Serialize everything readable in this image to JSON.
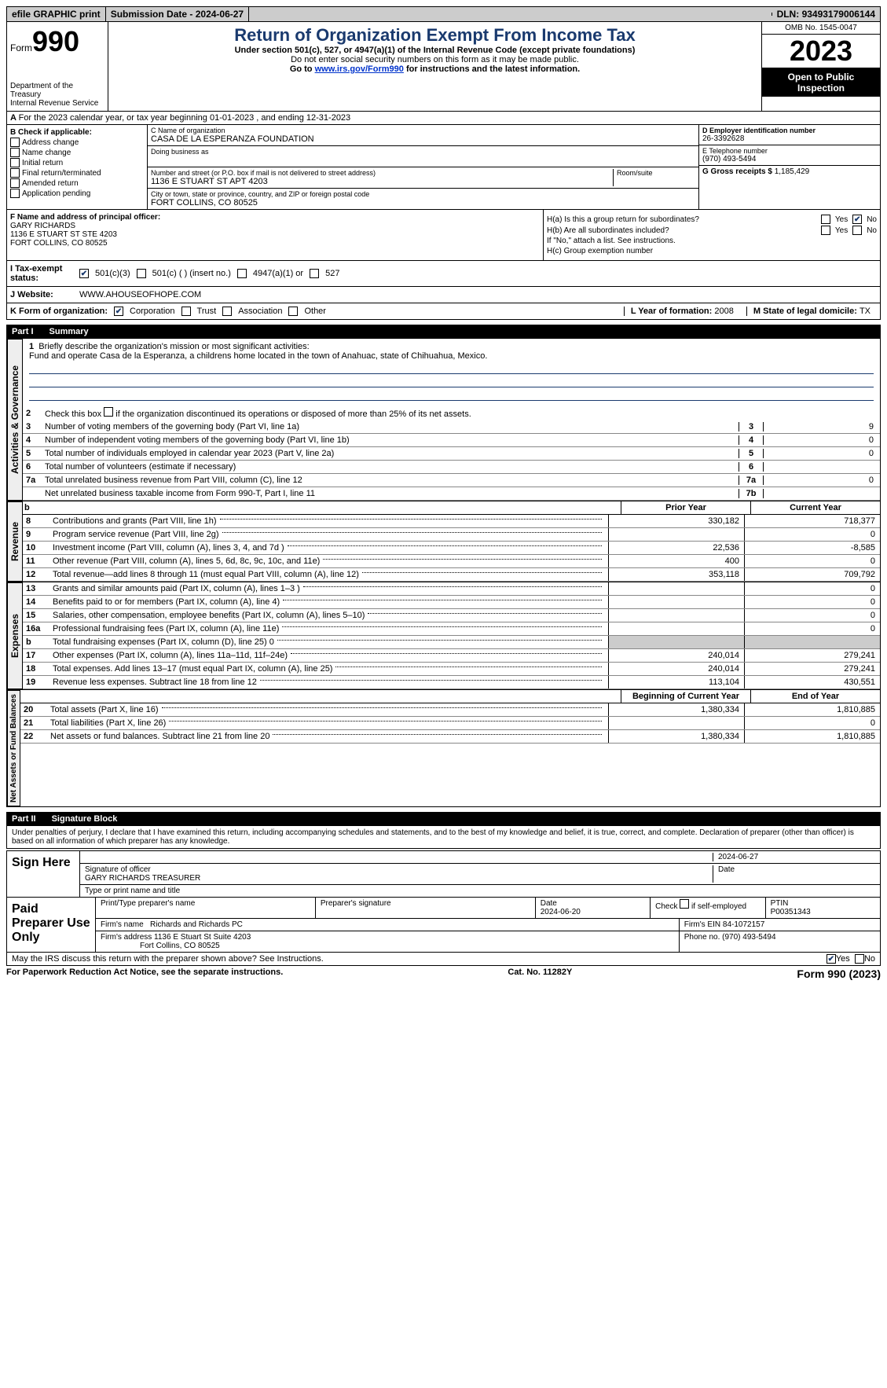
{
  "topbar": {
    "efile": "efile GRAPHIC print",
    "subdate_lbl": "Submission Date - ",
    "subdate": "2024-06-27",
    "dln_lbl": "DLN: ",
    "dln": "93493179006144"
  },
  "header": {
    "form_lbl": "Form",
    "form_no": "990",
    "dept": "Department of the Treasury\nInternal Revenue Service",
    "title": "Return of Organization Exempt From Income Tax",
    "sub1": "Under section 501(c), 527, or 4947(a)(1) of the Internal Revenue Code (except private foundations)",
    "sub2": "Do not enter social security numbers on this form as it may be made public.",
    "sub3_pre": "Go to ",
    "sub3_link": "www.irs.gov/Form990",
    "sub3_post": " for instructions and the latest information.",
    "omb": "OMB No. 1545-0047",
    "year": "2023",
    "open": "Open to Public Inspection"
  },
  "secA": "For the 2023 calendar year, or tax year beginning 01-01-2023   , and ending 12-31-2023",
  "boxB": {
    "hdr": "B Check if applicable:",
    "items": [
      "Address change",
      "Name change",
      "Initial return",
      "Final return/terminated",
      "Amended return",
      "Application pending"
    ]
  },
  "boxC": {
    "name_lbl": "C Name of organization",
    "name": "CASA DE LA ESPERANZA FOUNDATION",
    "dba_lbl": "Doing business as",
    "street_lbl": "Number and street (or P.O. box if mail is not delivered to street address)",
    "street": "1136 E STUART ST APT 4203",
    "room_lbl": "Room/suite",
    "city_lbl": "City or town, state or province, country, and ZIP or foreign postal code",
    "city": "FORT COLLINS, CO  80525"
  },
  "boxD": {
    "lbl": "D Employer identification number",
    "val": "26-3392628"
  },
  "boxE": {
    "lbl": "E Telephone number",
    "val": "(970) 493-5494"
  },
  "boxG": {
    "lbl": "G Gross receipts $ ",
    "val": "1,185,429"
  },
  "boxF": {
    "lbl": "F  Name and address of principal officer:",
    "name": "GARY RICHARDS",
    "addr1": "1136 E STUART ST STE 4203",
    "addr2": "FORT COLLINS, CO  80525"
  },
  "boxH": {
    "a_lbl": "H(a)  Is this a group return for subordinates?",
    "b_lbl": "H(b)  Are all subordinates included?",
    "b_note": "If \"No,\" attach a list. See instructions.",
    "c_lbl": "H(c)  Group exemption number",
    "yes": "Yes",
    "no": "No"
  },
  "status": {
    "lbl": "I   Tax-exempt status:",
    "opt1": "501(c)(3)",
    "opt2": "501(c) (  ) (insert no.)",
    "opt3": "4947(a)(1) or",
    "opt4": "527"
  },
  "web": {
    "lbl": "J   Website:",
    "val": "WWW.AHOUSEOFHOPE.COM"
  },
  "kline": {
    "lbl": "K Form of organization:",
    "opts": [
      "Corporation",
      "Trust",
      "Association",
      "Other"
    ],
    "l_lbl": "L Year of formation: ",
    "l_val": "2008",
    "m_lbl": "M State of legal domicile: ",
    "m_val": "TX"
  },
  "part1": {
    "title_pt": "Part I",
    "title": "Summary",
    "gov_lbl": "Activities & Governance",
    "line1": "Briefly describe the organization's mission or most significant activities:",
    "mission": "Fund and operate Casa de la Esperanza, a childrens home located in the town of Anahuac, state of Chihuahua, Mexico.",
    "line2": "Check this box      if the organization discontinued its operations or disposed of more than 25% of its net assets.",
    "lines": [
      {
        "n": "3",
        "d": "Number of voting members of the governing body (Part VI, line 1a)",
        "b": "3",
        "v": "9"
      },
      {
        "n": "4",
        "d": "Number of independent voting members of the governing body (Part VI, line 1b)",
        "b": "4",
        "v": "0"
      },
      {
        "n": "5",
        "d": "Total number of individuals employed in calendar year 2023 (Part V, line 2a)",
        "b": "5",
        "v": "0"
      },
      {
        "n": "6",
        "d": "Total number of volunteers (estimate if necessary)",
        "b": "6",
        "v": ""
      },
      {
        "n": "7a",
        "d": "Total unrelated business revenue from Part VIII, column (C), line 12",
        "b": "7a",
        "v": "0"
      },
      {
        "n": "",
        "d": "Net unrelated business taxable income from Form 990-T, Part I, line 11",
        "b": "7b",
        "v": ""
      }
    ]
  },
  "revenue": {
    "lbl": "Revenue",
    "hdr_b": "b",
    "hdr_py": "Prior Year",
    "hdr_cy": "Current Year",
    "rows": [
      {
        "n": "8",
        "d": "Contributions and grants (Part VIII, line 1h)",
        "py": "330,182",
        "cy": "718,377"
      },
      {
        "n": "9",
        "d": "Program service revenue (Part VIII, line 2g)",
        "py": "",
        "cy": "0"
      },
      {
        "n": "10",
        "d": "Investment income (Part VIII, column (A), lines 3, 4, and 7d )",
        "py": "22,536",
        "cy": "-8,585"
      },
      {
        "n": "11",
        "d": "Other revenue (Part VIII, column (A), lines 5, 6d, 8c, 9c, 10c, and 11e)",
        "py": "400",
        "cy": "0"
      },
      {
        "n": "12",
        "d": "Total revenue—add lines 8 through 11 (must equal Part VIII, column (A), line 12)",
        "py": "353,118",
        "cy": "709,792"
      }
    ]
  },
  "expenses": {
    "lbl": "Expenses",
    "rows": [
      {
        "n": "13",
        "d": "Grants and similar amounts paid (Part IX, column (A), lines 1–3 )",
        "py": "",
        "cy": "0"
      },
      {
        "n": "14",
        "d": "Benefits paid to or for members (Part IX, column (A), line 4)",
        "py": "",
        "cy": "0"
      },
      {
        "n": "15",
        "d": "Salaries, other compensation, employee benefits (Part IX, column (A), lines 5–10)",
        "py": "",
        "cy": "0"
      },
      {
        "n": "16a",
        "d": "Professional fundraising fees (Part IX, column (A), line 11e)",
        "py": "",
        "cy": "0"
      },
      {
        "n": "b",
        "d": "Total fundraising expenses (Part IX, column (D), line 25) 0",
        "py": "SHADE",
        "cy": "SHADE"
      },
      {
        "n": "17",
        "d": "Other expenses (Part IX, column (A), lines 11a–11d, 11f–24e)",
        "py": "240,014",
        "cy": "279,241"
      },
      {
        "n": "18",
        "d": "Total expenses. Add lines 13–17 (must equal Part IX, column (A), line 25)",
        "py": "240,014",
        "cy": "279,241"
      },
      {
        "n": "19",
        "d": "Revenue less expenses. Subtract line 18 from line 12",
        "py": "113,104",
        "cy": "430,551"
      }
    ]
  },
  "netassets": {
    "lbl": "Net Assets or Fund Balances",
    "hdr_py": "Beginning of Current Year",
    "hdr_cy": "End of Year",
    "rows": [
      {
        "n": "20",
        "d": "Total assets (Part X, line 16)",
        "py": "1,380,334",
        "cy": "1,810,885"
      },
      {
        "n": "21",
        "d": "Total liabilities (Part X, line 26)",
        "py": "",
        "cy": "0"
      },
      {
        "n": "22",
        "d": "Net assets or fund balances. Subtract line 21 from line 20",
        "py": "1,380,334",
        "cy": "1,810,885"
      }
    ]
  },
  "part2": {
    "pt": "Part II",
    "title": "Signature Block",
    "perjury": "Under penalties of perjury, I declare that I have examined this return, including accompanying schedules and statements, and to the best of my knowledge and belief, it is true, correct, and complete. Declaration of preparer (other than officer) is based on all information of which preparer has any knowledge.",
    "sign_here": "Sign Here",
    "sig_date": "2024-06-27",
    "sig_lbl": "Signature of officer",
    "officer": "GARY RICHARDS  TREASURER",
    "type_lbl": "Type or print name and title",
    "date_lbl": "Date",
    "paid": "Paid Preparer Use Only",
    "prep_name_lbl": "Print/Type preparer's name",
    "prep_sig_lbl": "Preparer's signature",
    "prep_date": "2024-06-20",
    "selfemp": "Check      if self-employed",
    "ptin_lbl": "PTIN",
    "ptin": "P00351343",
    "firm_name_lbl": "Firm's name",
    "firm_name": "Richards and Richards PC",
    "firm_ein_lbl": "Firm's EIN",
    "firm_ein": "84-1072157",
    "firm_addr_lbl": "Firm's address",
    "firm_addr1": "1136 E Stuart St Suite 4203",
    "firm_addr2": "Fort Collins, CO  80525",
    "phone_lbl": "Phone no.",
    "phone": "(970) 493-5494",
    "discuss": "May the IRS discuss this return with the preparer shown above? See Instructions.",
    "yes": "Yes",
    "no": "No"
  },
  "footer": {
    "left": "For Paperwork Reduction Act Notice, see the separate instructions.",
    "mid": "Cat. No. 11282Y",
    "right_pre": "Form ",
    "right_form": "990",
    "right_yr": " (2023)"
  }
}
